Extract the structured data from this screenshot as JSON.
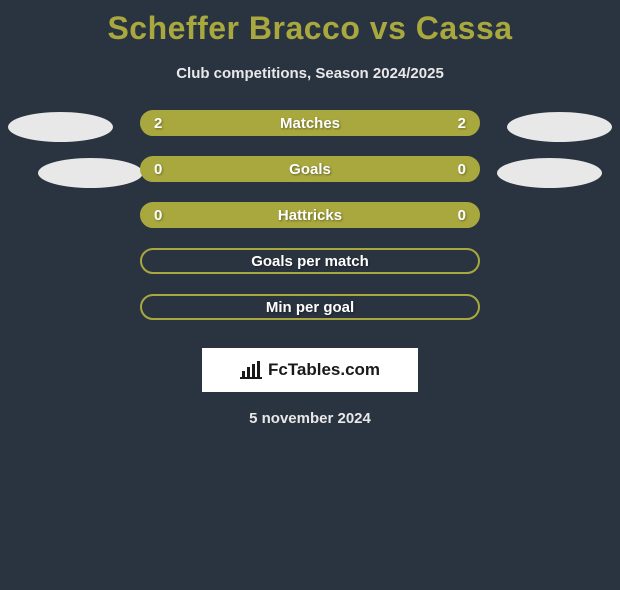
{
  "title": "Scheffer Bracco vs Cassa",
  "subtitle": "Club competitions, Season 2024/2025",
  "rows": [
    {
      "label": "Matches",
      "left": "2",
      "right": "2",
      "style": "filled",
      "showEllipses": true,
      "ellipseLeft": 8,
      "ellipseRight": 8
    },
    {
      "label": "Goals",
      "left": "0",
      "right": "0",
      "style": "filled",
      "showEllipses": true,
      "ellipseLeft": 38,
      "ellipseRight": 18
    },
    {
      "label": "Hattricks",
      "left": "0",
      "right": "0",
      "style": "filled",
      "showEllipses": false
    },
    {
      "label": "Goals per match",
      "left": "",
      "right": "",
      "style": "outline",
      "showEllipses": false
    },
    {
      "label": "Min per goal",
      "left": "",
      "right": "",
      "style": "outline",
      "showEllipses": false
    }
  ],
  "brand": "FcTables.com",
  "date": "5 november 2024",
  "colors": {
    "background": "#2a3440",
    "accent": "#a9a83e",
    "ellipse": "#e8e8e8",
    "textLight": "#e8e8e8"
  }
}
